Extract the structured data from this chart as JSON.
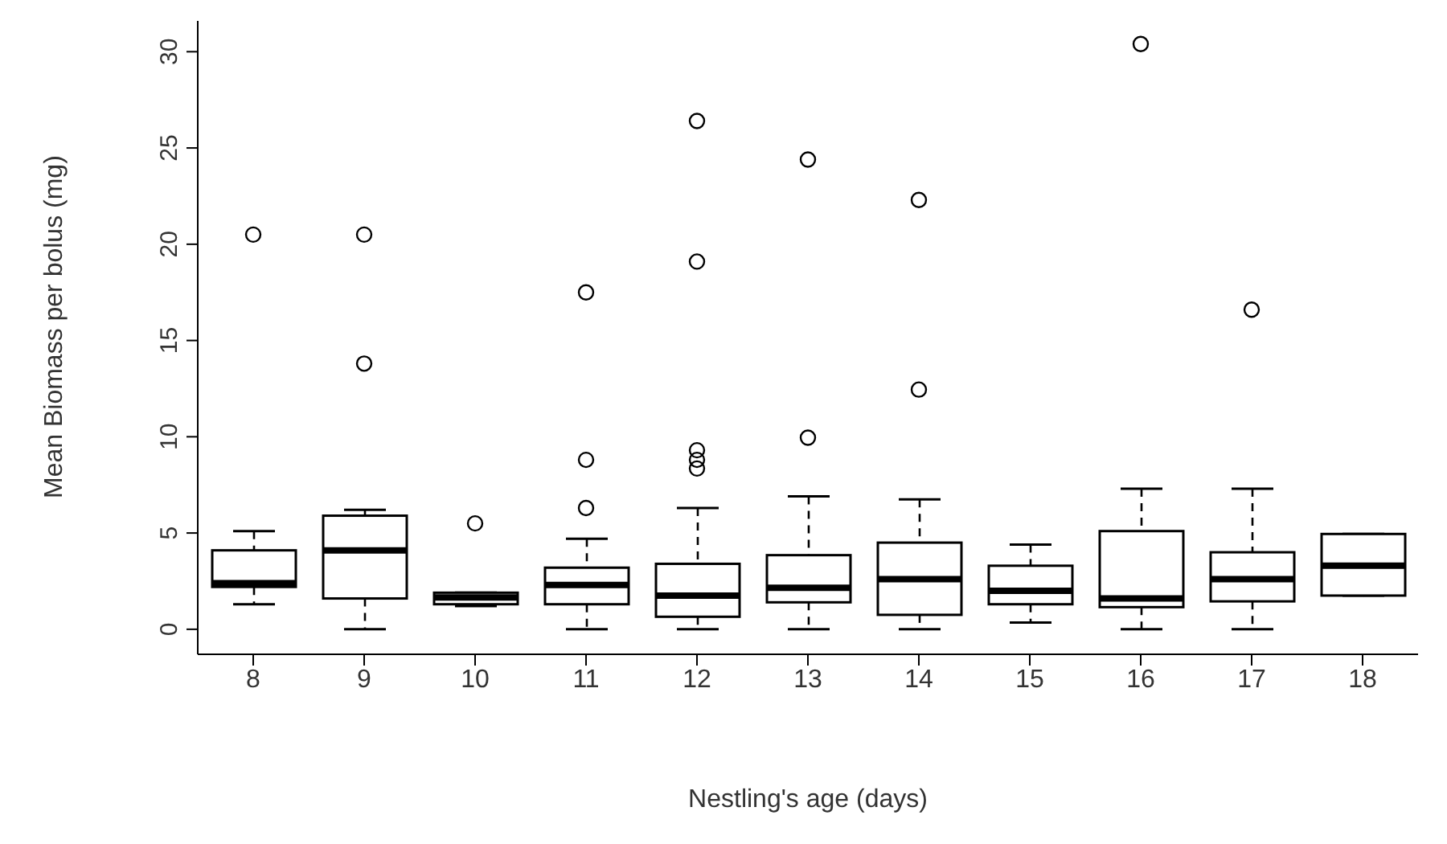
{
  "chart_data": {
    "type": "box",
    "xlabel": "Nestling's age (days)",
    "ylabel": "Mean Biomass per bolus (mg)",
    "categories": [
      "8",
      "9",
      "10",
      "11",
      "12",
      "13",
      "14",
      "15",
      "16",
      "17",
      "18"
    ],
    "color": "#000000",
    "ylim": [
      -1.3,
      31.6
    ],
    "yticks": [
      0,
      5,
      10,
      15,
      20,
      25,
      30
    ],
    "boxes": [
      {
        "low": 1.3,
        "q1": 2.2,
        "median": 2.4,
        "q3": 4.1,
        "high": 5.1,
        "outliers": [
          20.5
        ]
      },
      {
        "low": 0,
        "q1": 1.6,
        "median": 4.1,
        "q3": 5.9,
        "high": 6.2,
        "outliers": [
          13.8,
          20.5
        ]
      },
      {
        "low": 1.2,
        "q1": 1.3,
        "median": 1.65,
        "q3": 1.9,
        "high": 1.9,
        "outliers": [
          5.5
        ]
      },
      {
        "low": 0,
        "q1": 1.3,
        "median": 2.3,
        "q3": 3.2,
        "high": 4.7,
        "outliers": [
          6.3,
          8.8,
          17.5
        ]
      },
      {
        "low": 0,
        "q1": 0.65,
        "median": 1.75,
        "q3": 3.4,
        "high": 6.3,
        "outliers": [
          8.35,
          8.8,
          9.3,
          19.1,
          26.4
        ]
      },
      {
        "low": 0,
        "q1": 1.4,
        "median": 2.15,
        "q3": 3.85,
        "high": 6.9,
        "outliers": [
          9.95,
          24.4
        ]
      },
      {
        "low": 0,
        "q1": 0.75,
        "median": 2.6,
        "q3": 4.5,
        "high": 6.75,
        "outliers": [
          12.45,
          22.3
        ]
      },
      {
        "low": 0.35,
        "q1": 1.3,
        "median": 2.0,
        "q3": 3.3,
        "high": 4.4
      },
      {
        "low": 0,
        "q1": 1.15,
        "median": 1.6,
        "q3": 5.1,
        "high": 7.3,
        "outliers": [
          30.4
        ]
      },
      {
        "low": 0,
        "q1": 1.45,
        "median": 2.6,
        "q3": 4.0,
        "high": 7.3,
        "outliers": [
          16.6
        ]
      },
      {
        "low": 1.75,
        "q1": 1.75,
        "median": 3.3,
        "q3": 4.95,
        "high": 4.95
      }
    ]
  }
}
